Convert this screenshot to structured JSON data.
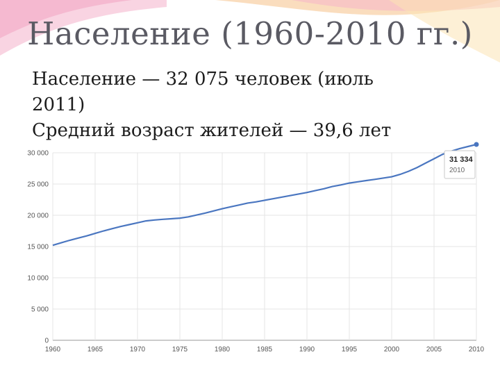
{
  "slide": {
    "title": "Население (1960-2010 гг.)",
    "bullets": [
      "Население — 32 075 человек (июль 2011)",
      "Средний возраст жителей — 39,6 лет"
    ]
  },
  "chart_data": {
    "type": "line",
    "title": "",
    "xlabel": "",
    "ylabel": "",
    "xlim": [
      1960,
      2010
    ],
    "ylim": [
      0,
      30000
    ],
    "grid": true,
    "line_color": "#4a76c0",
    "x_ticks": [
      "1960",
      "1965",
      "1970",
      "1975",
      "1980",
      "1985",
      "1990",
      "1995",
      "2000",
      "2005",
      "2010"
    ],
    "y_ticks": [
      "0",
      "5 000",
      "10 000",
      "15 000",
      "20 000",
      "25 000",
      "30 000"
    ],
    "x": [
      1960,
      1961,
      1962,
      1963,
      1964,
      1965,
      1966,
      1967,
      1968,
      1969,
      1970,
      1971,
      1972,
      1973,
      1974,
      1975,
      1976,
      1977,
      1978,
      1979,
      1980,
      1981,
      1982,
      1983,
      1984,
      1985,
      1986,
      1987,
      1988,
      1989,
      1990,
      1991,
      1992,
      1993,
      1994,
      1995,
      1996,
      1997,
      1998,
      1999,
      2000,
      2001,
      2002,
      2003,
      2004,
      2005,
      2006,
      2007,
      2008,
      2009,
      2010
    ],
    "series": [
      {
        "values": [
          15200,
          15600,
          16000,
          16350,
          16700,
          17100,
          17500,
          17850,
          18200,
          18500,
          18800,
          19100,
          19250,
          19350,
          19450,
          19550,
          19750,
          20050,
          20350,
          20700,
          21050,
          21350,
          21650,
          21950,
          22150,
          22400,
          22650,
          22900,
          23150,
          23400,
          23650,
          23950,
          24250,
          24600,
          24850,
          25150,
          25350,
          25550,
          25750,
          25950,
          26150,
          26550,
          27050,
          27650,
          28350,
          29050,
          29750,
          30250,
          30650,
          31000,
          31334
        ]
      }
    ],
    "tooltip": {
      "value": "31 334",
      "label": "2010"
    }
  }
}
